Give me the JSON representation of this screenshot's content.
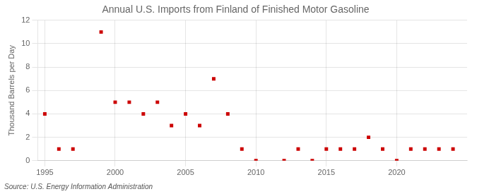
{
  "chart_data": {
    "type": "scatter",
    "title": "Annual U.S. Imports from Finland of Finished Motor Gasoline",
    "ylabel": "Thousand Barrels per Day",
    "annotations": [
      "Source: U.S. Energy Information Administration"
    ],
    "x": [
      1995,
      1996,
      1997,
      1999,
      2000,
      2001,
      2002,
      2003,
      2004,
      2005,
      2006,
      2007,
      2008,
      2009,
      2010,
      2012,
      2013,
      2014,
      2015,
      2016,
      2017,
      2018,
      2019,
      2020,
      2021,
      2022,
      2023,
      2024
    ],
    "values": [
      4,
      1,
      1,
      11,
      5,
      5,
      4,
      5,
      3,
      4,
      3,
      7,
      4,
      1,
      0,
      0,
      1,
      0,
      1,
      1,
      1,
      2,
      1,
      0,
      1,
      1,
      1,
      1
    ],
    "color": "#cc0000",
    "marker": "square",
    "xlim": [
      1994.5,
      2025
    ],
    "xticks": [
      1995,
      2000,
      2005,
      2010,
      2015,
      2020
    ],
    "ylim": [
      0,
      12
    ],
    "yticks": [
      0,
      2,
      4,
      6,
      8,
      10,
      12
    ],
    "grid": true
  }
}
